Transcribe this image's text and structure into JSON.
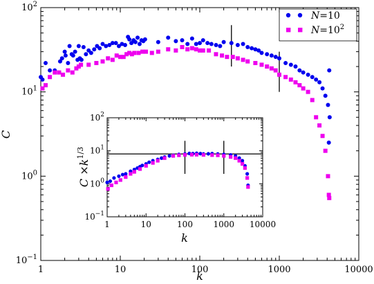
{
  "chart_data": [
    {
      "id": "main",
      "type": "scatter",
      "xscale": "log",
      "yscale": "log",
      "xlim": [
        1,
        10000
      ],
      "ylim": [
        0.1,
        100
      ],
      "xlabel": "k",
      "ylabel": "C",
      "xticks": [
        1,
        10,
        100,
        1000,
        10000
      ],
      "xtick_labels": [
        "1",
        "10",
        "100",
        "1000",
        "10000"
      ],
      "yticks": [
        0.1,
        1,
        10,
        100
      ],
      "ytick_labels_base": [
        "10",
        "10",
        "10",
        "10"
      ],
      "ytick_labels_exp": [
        "−1",
        "0",
        "1",
        "2"
      ],
      "legend_position": "top-right",
      "vertical_markers": [
        {
          "x": 250,
          "y_range": [
            20,
            62
          ]
        },
        {
          "x": 1000,
          "y_range": [
            10,
            30
          ]
        }
      ],
      "series": [
        {
          "name": "N=10",
          "name_base": "N",
          "name_eq": "=10",
          "name_exp": "",
          "color": "#0000ee",
          "marker": "circle",
          "x": [
            1,
            1.05,
            1.15,
            1.3,
            1.5,
            1.75,
            1.85,
            2,
            2.05,
            2.2,
            2.3,
            2.45,
            2.55,
            2.7,
            2.9,
            3,
            3.1,
            3.25,
            3.45,
            3.7,
            4,
            4.3,
            4.7,
            5.1,
            5.5,
            6,
            6.6,
            7.3,
            8,
            8.8,
            9.6,
            10.5,
            11.5,
            12.5,
            13,
            13.8,
            14.7,
            15.5,
            16.5,
            17.5,
            18.5,
            19.5,
            20.5,
            30,
            40,
            50,
            60,
            70,
            80,
            90,
            100,
            110,
            125,
            140,
            160,
            180,
            200,
            250,
            300,
            350,
            400,
            450,
            500,
            550,
            600,
            700,
            800,
            900,
            1000,
            1200,
            1400,
            1600,
            1800,
            2000,
            2300,
            2600,
            2900,
            3200,
            3500,
            3800,
            4100,
            4200,
            4250,
            4300
          ],
          "y": [
            15,
            14,
            22,
            18,
            18,
            23,
            25,
            30,
            27,
            22,
            35,
            28,
            27,
            30,
            24,
            35,
            25,
            24,
            34,
            28,
            31,
            29,
            32,
            35,
            33,
            37,
            35,
            36,
            38,
            38,
            35,
            37,
            36,
            45,
            42,
            38,
            41,
            39,
            44,
            37,
            41,
            40,
            42,
            39,
            44,
            40,
            41,
            37,
            43,
            37,
            38,
            41,
            38,
            37,
            36,
            35,
            39,
            38,
            36,
            37,
            34,
            33,
            32,
            31,
            29,
            28,
            27,
            26,
            25,
            22,
            21,
            20,
            18,
            17,
            16,
            15,
            14,
            13,
            11,
            9,
            7,
            2.5,
            18,
            5
          ]
        },
        {
          "name": "N=10^2",
          "name_base": "N",
          "name_eq": "=10",
          "name_exp": "2",
          "color": "#ee00ee",
          "marker": "square",
          "x": [
            1.05,
            1.15,
            1.3,
            1.5,
            1.7,
            1.9,
            2.2,
            2.5,
            2.8,
            3.0,
            3.2,
            4,
            5,
            6,
            7,
            8,
            9,
            10,
            11,
            12,
            13,
            14,
            15,
            17,
            19,
            21,
            25,
            30,
            40,
            50,
            60,
            70,
            80,
            90,
            100,
            110,
            130,
            160,
            190,
            220,
            260,
            300,
            350,
            400,
            500,
            600,
            700,
            800,
            900,
            1000,
            1200,
            1400,
            1600,
            1800,
            2000,
            2300,
            2600,
            2900,
            3200,
            3500,
            3800,
            4100,
            4200,
            4250
          ],
          "y": [
            11,
            12,
            15,
            17,
            17,
            16,
            18,
            17,
            19,
            20,
            21,
            21,
            22,
            23,
            25,
            24,
            27,
            26,
            26,
            28,
            29,
            28,
            29,
            29,
            30,
            30,
            29,
            30,
            32,
            31,
            34,
            32,
            33,
            32,
            31,
            31,
            31,
            28,
            27,
            26,
            26,
            25,
            24,
            23,
            22,
            21,
            20,
            19,
            18,
            16,
            15,
            14,
            13,
            12,
            11,
            10,
            8,
            5,
            4,
            3,
            2,
            1,
            0.6,
            0.55
          ]
        }
      ]
    },
    {
      "id": "inset",
      "type": "scatter",
      "xscale": "log",
      "yscale": "log",
      "xlim": [
        1,
        10000
      ],
      "ylim": [
        0.1,
        100
      ],
      "xlabel": "k",
      "ylabel_base": "C ×k",
      "ylabel_exp": "1/3",
      "xticks": [
        1,
        10,
        100,
        1000,
        10000
      ],
      "xtick_labels": [
        "1",
        "10",
        "100",
        "1000",
        "10000"
      ],
      "yticks": [
        0.1,
        1,
        10,
        100
      ],
      "ytick_labels_base": [
        "10",
        "10",
        "10",
        "10"
      ],
      "ytick_labels_exp": [
        "−1",
        "0",
        "1",
        "2"
      ],
      "horizontal_line": {
        "y": 8
      },
      "vertical_markers": [
        {
          "x": 100,
          "y_range": [
            2,
            20
          ]
        },
        {
          "x": 1000,
          "y_range": [
            2,
            20
          ]
        }
      ],
      "series": [
        {
          "name": "N=10",
          "color": "#0000ee",
          "marker": "circle",
          "x": [
            1,
            1.2,
            1.5,
            2,
            2.5,
            3,
            4,
            5,
            6,
            7,
            8,
            10,
            12,
            15,
            20,
            25,
            30,
            40,
            50,
            70,
            100,
            130,
            160,
            200,
            250,
            300,
            400,
            500,
            700,
            1000,
            1500,
            2000,
            2500,
            3000,
            3500,
            4000,
            4200
          ],
          "y": [
            1.1,
            1.2,
            1.5,
            1.7,
            1.9,
            2.0,
            2.4,
            2.7,
            3.0,
            3.3,
            3.6,
            4.0,
            4.5,
            5.0,
            5.5,
            6.0,
            6.5,
            7.0,
            7.3,
            7.8,
            8.0,
            8.3,
            8.2,
            8.4,
            8.2,
            8.0,
            8.1,
            8.2,
            8.0,
            7.8,
            7.5,
            7.0,
            6.0,
            5.0,
            3.5,
            2.0,
            0.9
          ]
        },
        {
          "name": "N=10^2",
          "color": "#ee00ee",
          "marker": "square",
          "x": [
            1.05,
            1.3,
            1.7,
            2.2,
            3,
            4,
            5,
            7,
            10,
            15,
            20,
            30,
            50,
            70,
            100,
            150,
            200,
            300,
            500,
            700,
            1000,
            1500,
            2000,
            2500,
            3000,
            3500,
            4000,
            4200
          ],
          "y": [
            0.7,
            0.9,
            1.1,
            1.3,
            1.6,
            2.0,
            2.3,
            2.8,
            3.5,
            4.3,
            5.0,
            6.0,
            7.0,
            7.3,
            7.5,
            7.6,
            7.6,
            7.5,
            7.4,
            7.3,
            7.0,
            6.5,
            6.0,
            5.0,
            4.0,
            3.0,
            1.5,
            0.8
          ]
        }
      ]
    }
  ]
}
